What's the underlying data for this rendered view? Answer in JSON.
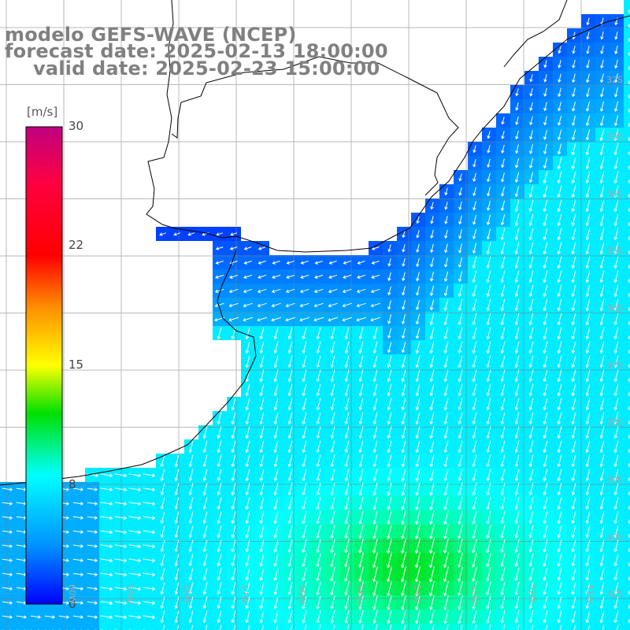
{
  "title": {
    "line1": "modelo GEFS-WAVE (NCEP)",
    "line2": "forecast date: 2025-02-13 18:00:00",
    "line3": "valid date: 2025-02-23 15:00:00"
  },
  "colorbar": {
    "unit": "[m/s]",
    "ticks": [
      "30",
      "22",
      "15",
      "8",
      "0"
    ],
    "tick_values": [
      30,
      22,
      15,
      8,
      0
    ],
    "colors": [
      "#0000ff",
      "#0090ff",
      "#00e8ff",
      "#00ffa0",
      "#00e000",
      "#a0f000",
      "#ffff00",
      "#ff9000",
      "#ff2000",
      "#ff0030",
      "#c00080"
    ]
  },
  "grid": {
    "lat_labels": [
      "32S",
      "33S",
      "34S",
      "35S",
      "36S",
      "37S",
      "38S",
      "39S",
      "40S",
      "41S"
    ],
    "lon_labels": [
      "60W",
      "59W",
      "58W",
      "57W",
      "56W",
      "55W",
      "54W",
      "53W",
      "52W",
      "51W"
    ]
  },
  "chart_data": {
    "type": "heatmap",
    "variable": "wind speed with direction arrows",
    "unit": "m/s",
    "range": [
      0,
      30
    ],
    "region": {
      "lon": [
        -61,
        -50
      ],
      "lat": [
        -41.5,
        -31
      ]
    },
    "notes": "Land (Uruguay, Argentina) white; calm blue near coast (~0-4 m/s), cyan offshore (~8 m/s), green maxima near 54-55W 40-41S (~10-12 m/s). Arrows point mostly south/southwest offshore, west/northwest near Uruguayan coast."
  }
}
